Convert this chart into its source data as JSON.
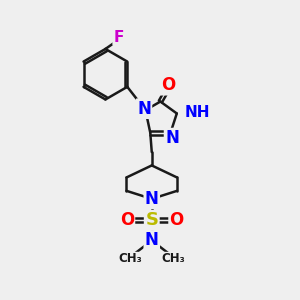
{
  "bg_color": "#efefef",
  "bond_color": "#1a1a1a",
  "bond_width": 1.8,
  "atoms": {
    "F": {
      "color": "#cc00cc",
      "fontsize": 11
    },
    "O": {
      "color": "#ff0000",
      "fontsize": 12
    },
    "N": {
      "color": "#0000ff",
      "fontsize": 12
    },
    "NH": {
      "color": "#0000ff",
      "fontsize": 11
    },
    "S": {
      "color": "#bbbb00",
      "fontsize": 13
    },
    "C": {
      "color": "#1a1a1a",
      "fontsize": 10
    }
  },
  "layout": {
    "xlim": [
      0,
      10
    ],
    "ylim": [
      0,
      10
    ]
  }
}
